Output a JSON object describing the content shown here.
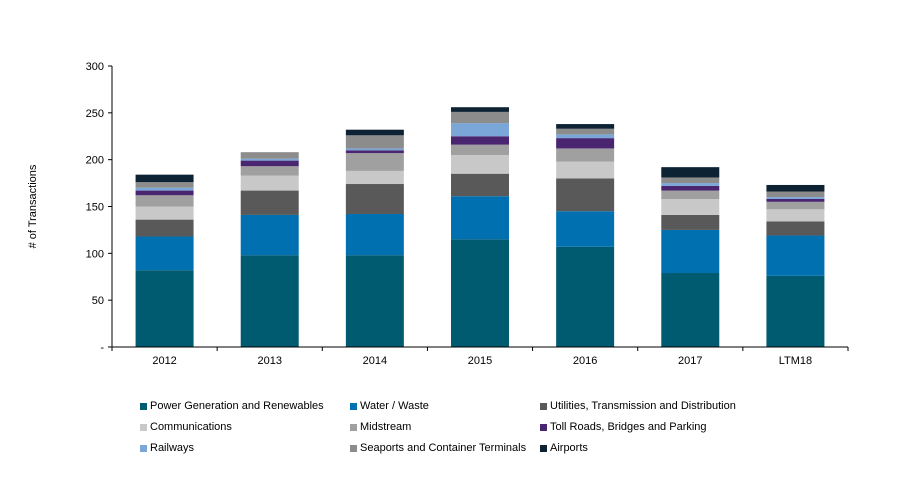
{
  "chart_data": {
    "type": "bar",
    "stacked": true,
    "title": "",
    "xlabel": "",
    "ylabel": "# of Transactions",
    "ylim": [
      0,
      300
    ],
    "yticks": [
      0,
      50,
      100,
      150,
      200,
      250,
      300
    ],
    "ytick_labels": [
      "-",
      "50",
      "100",
      "150",
      "200",
      "250",
      "300"
    ],
    "categories": [
      "2012",
      "2013",
      "2014",
      "2015",
      "2016",
      "2017",
      "LTM18"
    ],
    "grid": false,
    "legend_position": "bottom",
    "series": [
      {
        "name": "Power Generation and Renewables",
        "color": "#005a70",
        "values": [
          82,
          98,
          98,
          115,
          107,
          79,
          76
        ]
      },
      {
        "name": "Water / Waste",
        "color": "#0070b0",
        "values": [
          36,
          43,
          44,
          46,
          38,
          46,
          43
        ]
      },
      {
        "name": "Utilities, Transmission and Distribution",
        "color": "#595959",
        "values": [
          18,
          26,
          32,
          24,
          35,
          16,
          15
        ]
      },
      {
        "name": "Communications",
        "color": "#c8c8c8",
        "values": [
          14,
          16,
          14,
          20,
          18,
          17,
          13
        ]
      },
      {
        "name": "Midstream",
        "color": "#a0a0a0",
        "values": [
          12,
          10,
          19,
          11,
          14,
          9,
          8
        ]
      },
      {
        "name": "Toll Roads, Bridges and Parking",
        "color": "#4b2670",
        "values": [
          5,
          6,
          3,
          9,
          11,
          5,
          3
        ]
      },
      {
        "name": "Railways",
        "color": "#7aa6d8",
        "values": [
          3,
          2,
          2,
          14,
          4,
          3,
          2
        ]
      },
      {
        "name": "Seaports and Container Terminals",
        "color": "#8c8c8c",
        "values": [
          6,
          7,
          14,
          12,
          6,
          6,
          6
        ]
      },
      {
        "name": "Airports",
        "color": "#0d2233",
        "values": [
          8,
          0,
          6,
          5,
          5,
          11,
          7
        ]
      }
    ]
  }
}
